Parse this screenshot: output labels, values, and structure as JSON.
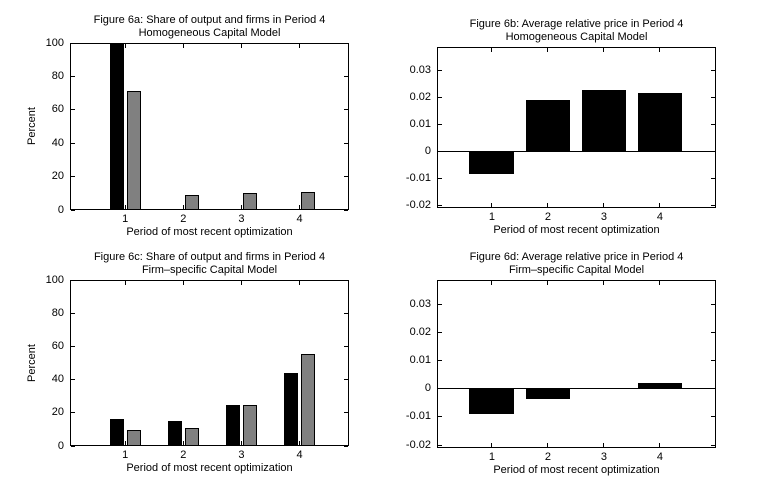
{
  "figure": {
    "background": "#ffffff",
    "text_color": "#000000",
    "bar_black": "#000000",
    "bar_gray": "#808080"
  },
  "chart_data": [
    {
      "id": "figure-6a",
      "type": "bar",
      "bar_mode": "grouped",
      "title": "Figure 6a: Share of output and firms in Period 4",
      "subtitle": "Homogeneous Capital Model",
      "xlabel": "Period of most recent optimization",
      "ylabel": "Percent",
      "categories": [
        "1",
        "2",
        "3",
        "4"
      ],
      "series": [
        {
          "name": "share-of-output-black",
          "color": "#000000",
          "values": [
            100,
            0,
            0,
            0
          ]
        },
        {
          "name": "share-of-firms-gray",
          "color": "#808080",
          "values": [
            71.5,
            9,
            10,
            11
          ]
        }
      ],
      "ylim": [
        0,
        100
      ],
      "yticks": [
        0,
        20,
        40,
        60,
        80,
        100
      ],
      "ytick_labels": [
        "0",
        "20",
        "40",
        "60",
        "80",
        "100"
      ],
      "grid": false,
      "legend": "none"
    },
    {
      "id": "figure-6b",
      "type": "bar",
      "bar_mode": "single",
      "title": "Figure 6b: Average relative price in Period 4",
      "subtitle": "Homogeneous Capital Model",
      "xlabel": "Period of most recent optimization",
      "ylabel": "",
      "categories": [
        "1",
        "2",
        "3",
        "4"
      ],
      "series": [
        {
          "name": "average-relative-price",
          "color": "#000000",
          "values": [
            -0.0085,
            0.019,
            0.0225,
            0.0215
          ]
        }
      ],
      "ylim": [
        -0.021,
        0.0385
      ],
      "yticks": [
        -0.02,
        -0.01,
        0,
        0.01,
        0.02,
        0.03
      ],
      "ytick_labels": [
        "-0.02",
        "-0.01",
        "0",
        "0.01",
        "0.02",
        "0.03"
      ],
      "grid": false,
      "legend": "none"
    },
    {
      "id": "figure-6c",
      "type": "bar",
      "bar_mode": "grouped",
      "title": "Figure 6c: Share of output and firms in Period 4",
      "subtitle": "Firm–specific Capital Model",
      "xlabel": "Period of most recent optimization",
      "ylabel": "Percent",
      "categories": [
        "1",
        "2",
        "3",
        "4"
      ],
      "series": [
        {
          "name": "share-of-output-black",
          "color": "#000000",
          "values": [
            16.5,
            15,
            24.5,
            44
          ]
        },
        {
          "name": "share-of-firms-gray",
          "color": "#808080",
          "values": [
            9.5,
            11,
            24.5,
            55.5
          ]
        }
      ],
      "ylim": [
        0,
        100
      ],
      "yticks": [
        0,
        20,
        40,
        60,
        80,
        100
      ],
      "ytick_labels": [
        "0",
        "20",
        "40",
        "60",
        "80",
        "100"
      ],
      "grid": false,
      "legend": "none"
    },
    {
      "id": "figure-6d",
      "type": "bar",
      "bar_mode": "single",
      "title": "Figure 6d: Average relative price in Period 4",
      "subtitle": "Firm–specific Capital Model",
      "xlabel": "Period of most recent optimization",
      "ylabel": "",
      "categories": [
        "1",
        "2",
        "3",
        "4"
      ],
      "series": [
        {
          "name": "average-relative-price",
          "color": "#000000",
          "values": [
            -0.009,
            -0.0035,
            0,
            0.002
          ]
        }
      ],
      "ylim": [
        -0.021,
        0.0385
      ],
      "yticks": [
        -0.02,
        -0.01,
        0,
        0.01,
        0.02,
        0.03
      ],
      "ytick_labels": [
        "-0.02",
        "-0.01",
        "0",
        "0.01",
        "0.02",
        "0.03"
      ],
      "grid": false,
      "legend": "none"
    }
  ]
}
